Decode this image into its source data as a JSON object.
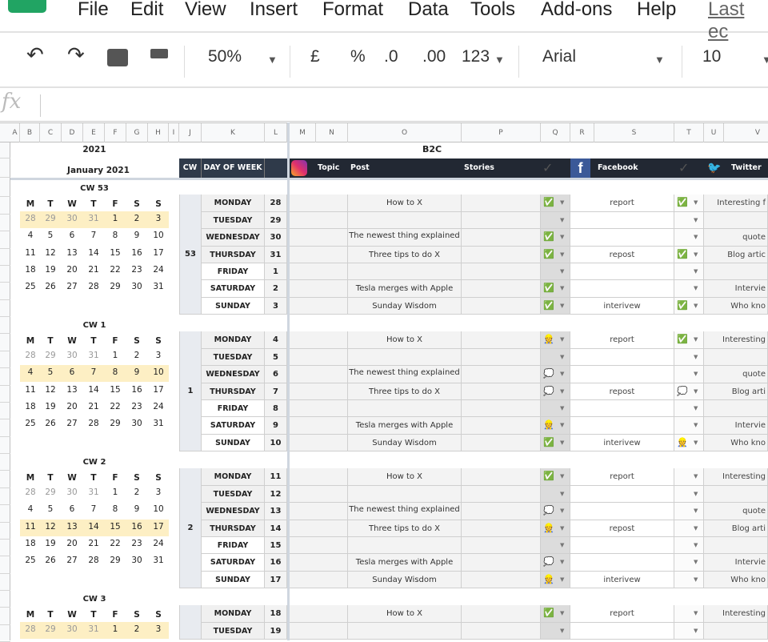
{
  "menu": {
    "items": [
      "File",
      "Edit",
      "View",
      "Insert",
      "Format",
      "Data",
      "Tools",
      "Add-ons",
      "Help"
    ],
    "last_edit": "Last ec"
  },
  "toolbar": {
    "zoom": "50%",
    "currency": "£",
    "percent": "%",
    "dec_less": ".0",
    "dec_more": ".00",
    "format": "123",
    "font": "Arial",
    "font_size": "10",
    "icons": [
      "undo-icon",
      "redo-icon",
      "print-icon",
      "paint-format-icon"
    ]
  },
  "formula_bar": {
    "label": "fx",
    "value": ""
  },
  "columns": [
    "A",
    "B",
    "C",
    "D",
    "E",
    "F",
    "G",
    "H",
    "I",
    "J",
    "K",
    "L",
    "M",
    "N",
    "O",
    "P",
    "Q",
    "R",
    "S",
    "T",
    "U",
    "V"
  ],
  "calendar": {
    "year": "2021",
    "month": "January 2021",
    "weekday_headers": [
      "M",
      "T",
      "W",
      "T",
      "F",
      "S",
      "S"
    ],
    "weeks": [
      [
        "28",
        "29",
        "30",
        "31",
        "1",
        "2",
        "3"
      ],
      [
        "4",
        "5",
        "6",
        "7",
        "8",
        "9",
        "10"
      ],
      [
        "11",
        "12",
        "13",
        "14",
        "15",
        "16",
        "17"
      ],
      [
        "18",
        "19",
        "20",
        "21",
        "22",
        "23",
        "24"
      ],
      [
        "25",
        "26",
        "27",
        "28",
        "29",
        "30",
        "31"
      ]
    ],
    "prev_month_days": 4,
    "blocks": [
      {
        "title": "CW 53",
        "highlight_week": 0
      },
      {
        "title": "CW 1",
        "highlight_week": 1
      },
      {
        "title": "CW 2",
        "highlight_week": 2
      },
      {
        "title": "CW 3",
        "highlight_week": 0
      }
    ],
    "highlight_color": "#fdefc4"
  },
  "schedule": {
    "section": "B2C",
    "header": {
      "cw": "CW",
      "day": "DAY OF WEEK",
      "instagram": "Topic",
      "post": "Post",
      "stories": "Stories",
      "facebook": "Facebook",
      "twitter": "Twitter"
    },
    "status_legend": {
      "done": "✅",
      "in_progress": "👷",
      "idea": "💭"
    },
    "weeks": [
      {
        "cw": "53",
        "days": [
          {
            "day": "MONDAY",
            "date": "28",
            "post": "How to X",
            "q": "done",
            "fb": "report",
            "t": "done",
            "tw": "Interesting f"
          },
          {
            "day": "TUESDAY",
            "date": "29",
            "post": "",
            "q": "",
            "fb": "",
            "t": "",
            "tw": ""
          },
          {
            "day": "WEDNESDAY",
            "date": "30",
            "post": "The newest thing explained",
            "q": "done",
            "fb": "",
            "t": "",
            "tw": "quote"
          },
          {
            "day": "THURSDAY",
            "date": "31",
            "post": "Three tips to do X",
            "q": "done",
            "fb": "repost",
            "t": "done",
            "tw": "Blog artic"
          },
          {
            "day": "FRIDAY",
            "date": "1",
            "post": "",
            "q": "",
            "fb": "",
            "t": "",
            "tw": ""
          },
          {
            "day": "SATURDAY",
            "date": "2",
            "post": "Tesla merges with Apple",
            "q": "done",
            "fb": "",
            "t": "",
            "tw": "Intervie"
          },
          {
            "day": "SUNDAY",
            "date": "3",
            "post": "Sunday Wisdom",
            "q": "done",
            "fb": "interivew",
            "t": "done",
            "tw": "Who kno"
          }
        ]
      },
      {
        "cw": "1",
        "days": [
          {
            "day": "MONDAY",
            "date": "4",
            "post": "How to X",
            "q": "in_progress",
            "fb": "report",
            "t": "done",
            "tw": "Interesting"
          },
          {
            "day": "TUESDAY",
            "date": "5",
            "post": "",
            "q": "",
            "fb": "",
            "t": "",
            "tw": ""
          },
          {
            "day": "WEDNESDAY",
            "date": "6",
            "post": "The newest thing explained",
            "q": "idea",
            "fb": "",
            "t": "",
            "tw": "quote"
          },
          {
            "day": "THURSDAY",
            "date": "7",
            "post": "Three tips to do X",
            "q": "idea",
            "fb": "repost",
            "t": "idea",
            "tw": "Blog arti"
          },
          {
            "day": "FRIDAY",
            "date": "8",
            "post": "",
            "q": "",
            "fb": "",
            "t": "",
            "tw": ""
          },
          {
            "day": "SATURDAY",
            "date": "9",
            "post": "Tesla merges with Apple",
            "q": "in_progress",
            "fb": "",
            "t": "",
            "tw": "Intervie"
          },
          {
            "day": "SUNDAY",
            "date": "10",
            "post": "Sunday Wisdom",
            "q": "done",
            "fb": "interivew",
            "t": "in_progress",
            "tw": "Who kno"
          }
        ]
      },
      {
        "cw": "2",
        "days": [
          {
            "day": "MONDAY",
            "date": "11",
            "post": "How to X",
            "q": "done",
            "fb": "report",
            "t": "",
            "tw": "Interesting"
          },
          {
            "day": "TUESDAY",
            "date": "12",
            "post": "",
            "q": "",
            "fb": "",
            "t": "",
            "tw": ""
          },
          {
            "day": "WEDNESDAY",
            "date": "13",
            "post": "The newest thing explained",
            "q": "idea",
            "fb": "",
            "t": "",
            "tw": "quote"
          },
          {
            "day": "THURSDAY",
            "date": "14",
            "post": "Three tips to do X",
            "q": "in_progress",
            "fb": "repost",
            "t": "",
            "tw": "Blog arti"
          },
          {
            "day": "FRIDAY",
            "date": "15",
            "post": "",
            "q": "",
            "fb": "",
            "t": "",
            "tw": ""
          },
          {
            "day": "SATURDAY",
            "date": "16",
            "post": "Tesla merges with Apple",
            "q": "idea",
            "fb": "",
            "t": "",
            "tw": "Intervie"
          },
          {
            "day": "SUNDAY",
            "date": "17",
            "post": "Sunday Wisdom",
            "q": "in_progress",
            "fb": "interivew",
            "t": "",
            "tw": "Who kno"
          }
        ]
      },
      {
        "cw": "",
        "days": [
          {
            "day": "MONDAY",
            "date": "18",
            "post": "How to X",
            "q": "done",
            "fb": "report",
            "t": "",
            "tw": "Interesting"
          },
          {
            "day": "TUESDAY",
            "date": "19",
            "post": "",
            "q": "",
            "fb": "",
            "t": "",
            "tw": ""
          }
        ]
      }
    ]
  },
  "colors": {
    "header_bar": "#222833",
    "cw_cell": "#e8ebf0",
    "instagram": "#c13584",
    "facebook": "#3b5998",
    "twitter": "#1da1f2",
    "check": "#2fb844"
  }
}
